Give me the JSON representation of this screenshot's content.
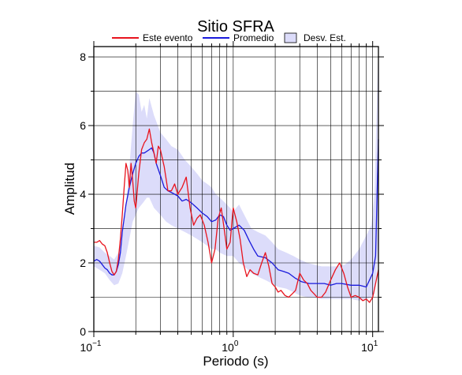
{
  "chart_data": {
    "type": "line",
    "title": "Sitio SFRA",
    "xlabel": "Periodo (s)",
    "ylabel": "Amplitud",
    "x_scale": "log",
    "xlim": [
      0.1,
      11
    ],
    "ylim": [
      0,
      8.3
    ],
    "x_ticks": [
      {
        "value": 0.1,
        "base": "10",
        "exp": "−1"
      },
      {
        "value": 1,
        "base": "10",
        "exp": "0"
      },
      {
        "value": 10,
        "base": "10",
        "exp": "1"
      }
    ],
    "y_ticks": [
      0,
      2,
      4,
      6,
      8
    ],
    "grid": true,
    "legend": {
      "placement": "top",
      "entries": [
        {
          "label": "Este evento",
          "kind": "line",
          "color": "#e8141e"
        },
        {
          "label": "Promedio",
          "kind": "line",
          "color": "#1a1adc"
        },
        {
          "label": "Desv. Est.",
          "kind": "band",
          "color": "#dcdcfa"
        }
      ]
    },
    "series": [
      {
        "name": "Este evento",
        "color": "#e8141e",
        "x": [
          0.1,
          0.105,
          0.11,
          0.115,
          0.12,
          0.125,
          0.13,
          0.135,
          0.14,
          0.145,
          0.15,
          0.155,
          0.16,
          0.165,
          0.17,
          0.175,
          0.18,
          0.185,
          0.19,
          0.195,
          0.2,
          0.21,
          0.22,
          0.23,
          0.24,
          0.25,
          0.26,
          0.27,
          0.28,
          0.29,
          0.3,
          0.32,
          0.34,
          0.36,
          0.38,
          0.4,
          0.43,
          0.46,
          0.49,
          0.52,
          0.55,
          0.58,
          0.62,
          0.66,
          0.7,
          0.74,
          0.78,
          0.82,
          0.86,
          0.9,
          0.95,
          1.0,
          1.06,
          1.12,
          1.18,
          1.25,
          1.32,
          1.4,
          1.5,
          1.6,
          1.7,
          1.8,
          1.9,
          2.0,
          2.1,
          2.2,
          2.35,
          2.5,
          2.65,
          2.8,
          3.0,
          3.2,
          3.4,
          3.6,
          3.8,
          4.0,
          4.3,
          4.6,
          5.0,
          5.4,
          5.8,
          6.2,
          6.6,
          7.0,
          7.5,
          8.0,
          8.5,
          9.0,
          9.5,
          10.0,
          10.5,
          11.0
        ],
        "y": [
          2.6,
          2.6,
          2.65,
          2.55,
          2.5,
          2.3,
          2.0,
          1.75,
          1.65,
          1.75,
          2.1,
          2.7,
          3.4,
          4.2,
          4.9,
          4.7,
          4.2,
          4.9,
          4.4,
          3.8,
          3.6,
          4.6,
          5.3,
          5.5,
          5.6,
          5.9,
          5.5,
          5.2,
          4.9,
          5.4,
          5.3,
          4.8,
          4.1,
          4.1,
          4.3,
          4.0,
          4.2,
          4.5,
          3.6,
          3.1,
          3.3,
          3.4,
          3.1,
          2.6,
          2.0,
          2.4,
          3.3,
          3.6,
          3.0,
          2.4,
          2.6,
          3.6,
          3.2,
          2.7,
          2.0,
          1.6,
          1.8,
          1.7,
          1.65,
          2.0,
          2.3,
          1.9,
          1.4,
          1.3,
          1.15,
          1.2,
          1.05,
          1.0,
          1.1,
          1.2,
          1.7,
          1.5,
          1.4,
          1.2,
          1.1,
          1.0,
          1.0,
          1.15,
          1.5,
          1.8,
          2.0,
          1.7,
          1.3,
          1.0,
          1.05,
          1.0,
          0.9,
          0.95,
          0.85,
          1.0,
          1.4,
          1.8
        ]
      },
      {
        "name": "Promedio",
        "color": "#1a1adc",
        "x": [
          0.1,
          0.105,
          0.11,
          0.115,
          0.12,
          0.125,
          0.13,
          0.135,
          0.14,
          0.145,
          0.15,
          0.155,
          0.16,
          0.17,
          0.18,
          0.19,
          0.2,
          0.21,
          0.22,
          0.23,
          0.24,
          0.25,
          0.26,
          0.27,
          0.28,
          0.3,
          0.32,
          0.34,
          0.36,
          0.38,
          0.4,
          0.43,
          0.46,
          0.5,
          0.55,
          0.6,
          0.65,
          0.7,
          0.75,
          0.8,
          0.85,
          0.9,
          0.95,
          1.0,
          1.1,
          1.2,
          1.3,
          1.4,
          1.5,
          1.7,
          1.9,
          2.1,
          2.3,
          2.5,
          2.8,
          3.1,
          3.5,
          4.0,
          4.5,
          5.0,
          5.5,
          6.0,
          7.0,
          8.0,
          9.0,
          10.0,
          10.5,
          11.0
        ],
        "y": [
          2.05,
          2.1,
          2.05,
          1.95,
          1.85,
          1.8,
          1.7,
          1.65,
          1.65,
          1.75,
          1.95,
          2.3,
          2.9,
          3.7,
          4.2,
          4.6,
          4.9,
          5.1,
          5.2,
          5.2,
          5.25,
          5.3,
          5.35,
          5.2,
          4.9,
          4.55,
          4.2,
          4.1,
          4.05,
          4.0,
          3.95,
          3.8,
          3.85,
          3.75,
          3.6,
          3.45,
          3.35,
          3.2,
          3.25,
          3.4,
          3.35,
          3.1,
          2.95,
          3.0,
          3.1,
          2.95,
          2.65,
          2.4,
          2.2,
          2.15,
          2.0,
          1.8,
          1.75,
          1.7,
          1.55,
          1.45,
          1.4,
          1.4,
          1.4,
          1.35,
          1.4,
          1.4,
          1.35,
          1.35,
          1.3,
          1.7,
          2.2,
          5.6
        ]
      }
    ],
    "band": {
      "name": "Desv. Est.",
      "color": "#dcdcfa",
      "x": [
        0.1,
        0.11,
        0.12,
        0.13,
        0.14,
        0.15,
        0.16,
        0.17,
        0.18,
        0.19,
        0.2,
        0.21,
        0.22,
        0.23,
        0.24,
        0.25,
        0.27,
        0.3,
        0.33,
        0.36,
        0.4,
        0.45,
        0.5,
        0.55,
        0.6,
        0.65,
        0.7,
        0.75,
        0.8,
        0.9,
        1.0,
        1.1,
        1.2,
        1.35,
        1.5,
        1.7,
        1.9,
        2.1,
        2.4,
        2.7,
        3.0,
        3.4,
        3.8,
        4.3,
        5.0,
        5.6,
        6.3,
        7.0,
        8.0,
        9.0,
        9.8,
        10.3,
        10.6,
        11.0
      ],
      "upper": [
        2.5,
        2.45,
        2.3,
        2.2,
        2.1,
        2.3,
        2.8,
        3.7,
        4.8,
        6.0,
        7.0,
        6.9,
        6.4,
        6.6,
        6.2,
        6.8,
        6.3,
        5.8,
        5.6,
        5.4,
        5.3,
        5.0,
        4.8,
        4.6,
        4.4,
        4.3,
        4.2,
        4.0,
        3.9,
        3.7,
        3.5,
        3.7,
        3.4,
        3.0,
        2.9,
        2.8,
        2.6,
        2.4,
        2.3,
        2.2,
        2.1,
        2.0,
        1.95,
        1.9,
        1.9,
        1.9,
        1.95,
        2.1,
        2.4,
        2.8,
        3.1,
        4.0,
        6.0,
        8.3
      ],
      "lower": [
        1.9,
        1.8,
        1.7,
        1.5,
        1.35,
        1.4,
        1.7,
        2.2,
        2.7,
        3.2,
        3.4,
        3.6,
        3.7,
        3.8,
        3.9,
        3.9,
        3.6,
        3.4,
        3.2,
        3.1,
        3.0,
        2.9,
        2.8,
        2.7,
        2.6,
        2.5,
        2.4,
        2.4,
        2.3,
        2.2,
        2.2,
        2.0,
        1.9,
        1.7,
        1.6,
        1.5,
        1.4,
        1.3,
        1.25,
        1.15,
        1.05,
        1.0,
        1.0,
        0.95,
        0.95,
        0.95,
        0.95,
        0.95,
        0.9,
        0.95,
        1.0,
        1.1,
        1.5,
        2.8
      ]
    }
  }
}
